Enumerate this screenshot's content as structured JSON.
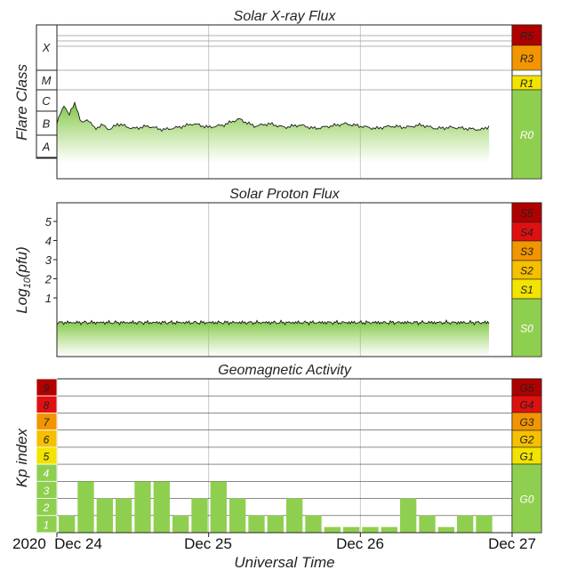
{
  "colors": {
    "green": "#8fcf4f",
    "yellow": "#f2e300",
    "light_orange": "#f5c000",
    "orange": "#f29500",
    "red_orange": "#f24a00",
    "red": "#e01010",
    "dark_red": "#b00000"
  },
  "xaxis": {
    "title": "Universal Time",
    "year_label": "2020",
    "day_labels": [
      "Dec 24",
      "Dec 25",
      "Dec 26",
      "Dec 27"
    ]
  },
  "chart_data": [
    {
      "type": "area",
      "title": "Solar X-ray Flux",
      "ylabel": "Flare Class",
      "y_classes": [
        "X",
        "M",
        "C",
        "B",
        "A"
      ],
      "x_range": [
        "2020-12-24 00:00",
        "2020-12-26 20:00"
      ],
      "level_class": "A",
      "peaks_class": "B",
      "series_x_days": [
        0.0,
        0.05,
        0.08,
        0.12,
        0.16,
        0.2,
        0.25,
        0.3,
        0.35,
        0.4,
        0.5,
        0.6,
        0.7,
        0.8,
        0.9,
        1.0,
        1.1,
        1.2,
        1.3,
        1.4,
        1.5,
        1.6,
        1.7,
        1.8,
        1.9,
        2.0,
        2.1,
        2.2,
        2.3,
        2.4,
        2.5,
        2.6,
        2.7,
        2.8,
        2.85
      ],
      "series_level": [
        0.6,
        1.35,
        0.9,
        1.45,
        0.55,
        0.75,
        0.35,
        0.5,
        0.3,
        0.55,
        0.35,
        0.45,
        0.3,
        0.4,
        0.55,
        0.4,
        0.5,
        0.75,
        0.45,
        0.55,
        0.4,
        0.5,
        0.35,
        0.45,
        0.55,
        0.45,
        0.35,
        0.45,
        0.4,
        0.5,
        0.35,
        0.4,
        0.35,
        0.3,
        0.45
      ],
      "scale": [
        {
          "label": "R5",
          "color": "#b00000"
        },
        {
          "label": "R3",
          "color": "#f29500"
        },
        {
          "label": "R1",
          "color": "#f2e300"
        },
        {
          "label": "R0",
          "color": "#8fcf4f"
        }
      ]
    },
    {
      "type": "area",
      "title": "Solar Proton Flux",
      "ylabel": "Log10(pfu)",
      "ylabel_base": "Log",
      "ylabel_sub": "10",
      "ylabel_rest": "(pfu)",
      "y_ticks": [
        "5",
        "4",
        "3",
        "2",
        "1"
      ],
      "ylim": [
        -1,
        6
      ],
      "x_range": [
        "2020-12-24 00:00",
        "2020-12-26 20:00"
      ],
      "level_log10_pfu": -0.15,
      "scale": [
        {
          "label": "S5",
          "color": "#b00000"
        },
        {
          "label": "S4",
          "color": "#e01010"
        },
        {
          "label": "S3",
          "color": "#f29500"
        },
        {
          "label": "S2",
          "color": "#f5c000"
        },
        {
          "label": "S1",
          "color": "#f2e300"
        },
        {
          "label": "S0",
          "color": "#8fcf4f"
        }
      ]
    },
    {
      "type": "bar",
      "title": "Geomagnetic Activity",
      "ylabel": "Kp index",
      "kp_levels": [
        "9",
        "8",
        "7",
        "6",
        "5",
        "4",
        "3",
        "2",
        "1"
      ],
      "ylim": [
        0,
        9
      ],
      "interval_hours": 3,
      "values": [
        1,
        3,
        2,
        2,
        3,
        3,
        1,
        2,
        3,
        2,
        1,
        1,
        2,
        1,
        0.33,
        0.33,
        0.33,
        0.33,
        2,
        1,
        0.33,
        1,
        1
      ],
      "scale": [
        {
          "label": "G5",
          "color": "#b00000"
        },
        {
          "label": "G4",
          "color": "#e01010"
        },
        {
          "label": "G3",
          "color": "#f29500"
        },
        {
          "label": "G2",
          "color": "#f5c000"
        },
        {
          "label": "G1",
          "color": "#f2e300"
        },
        {
          "label": "G0",
          "color": "#8fcf4f"
        }
      ]
    }
  ]
}
